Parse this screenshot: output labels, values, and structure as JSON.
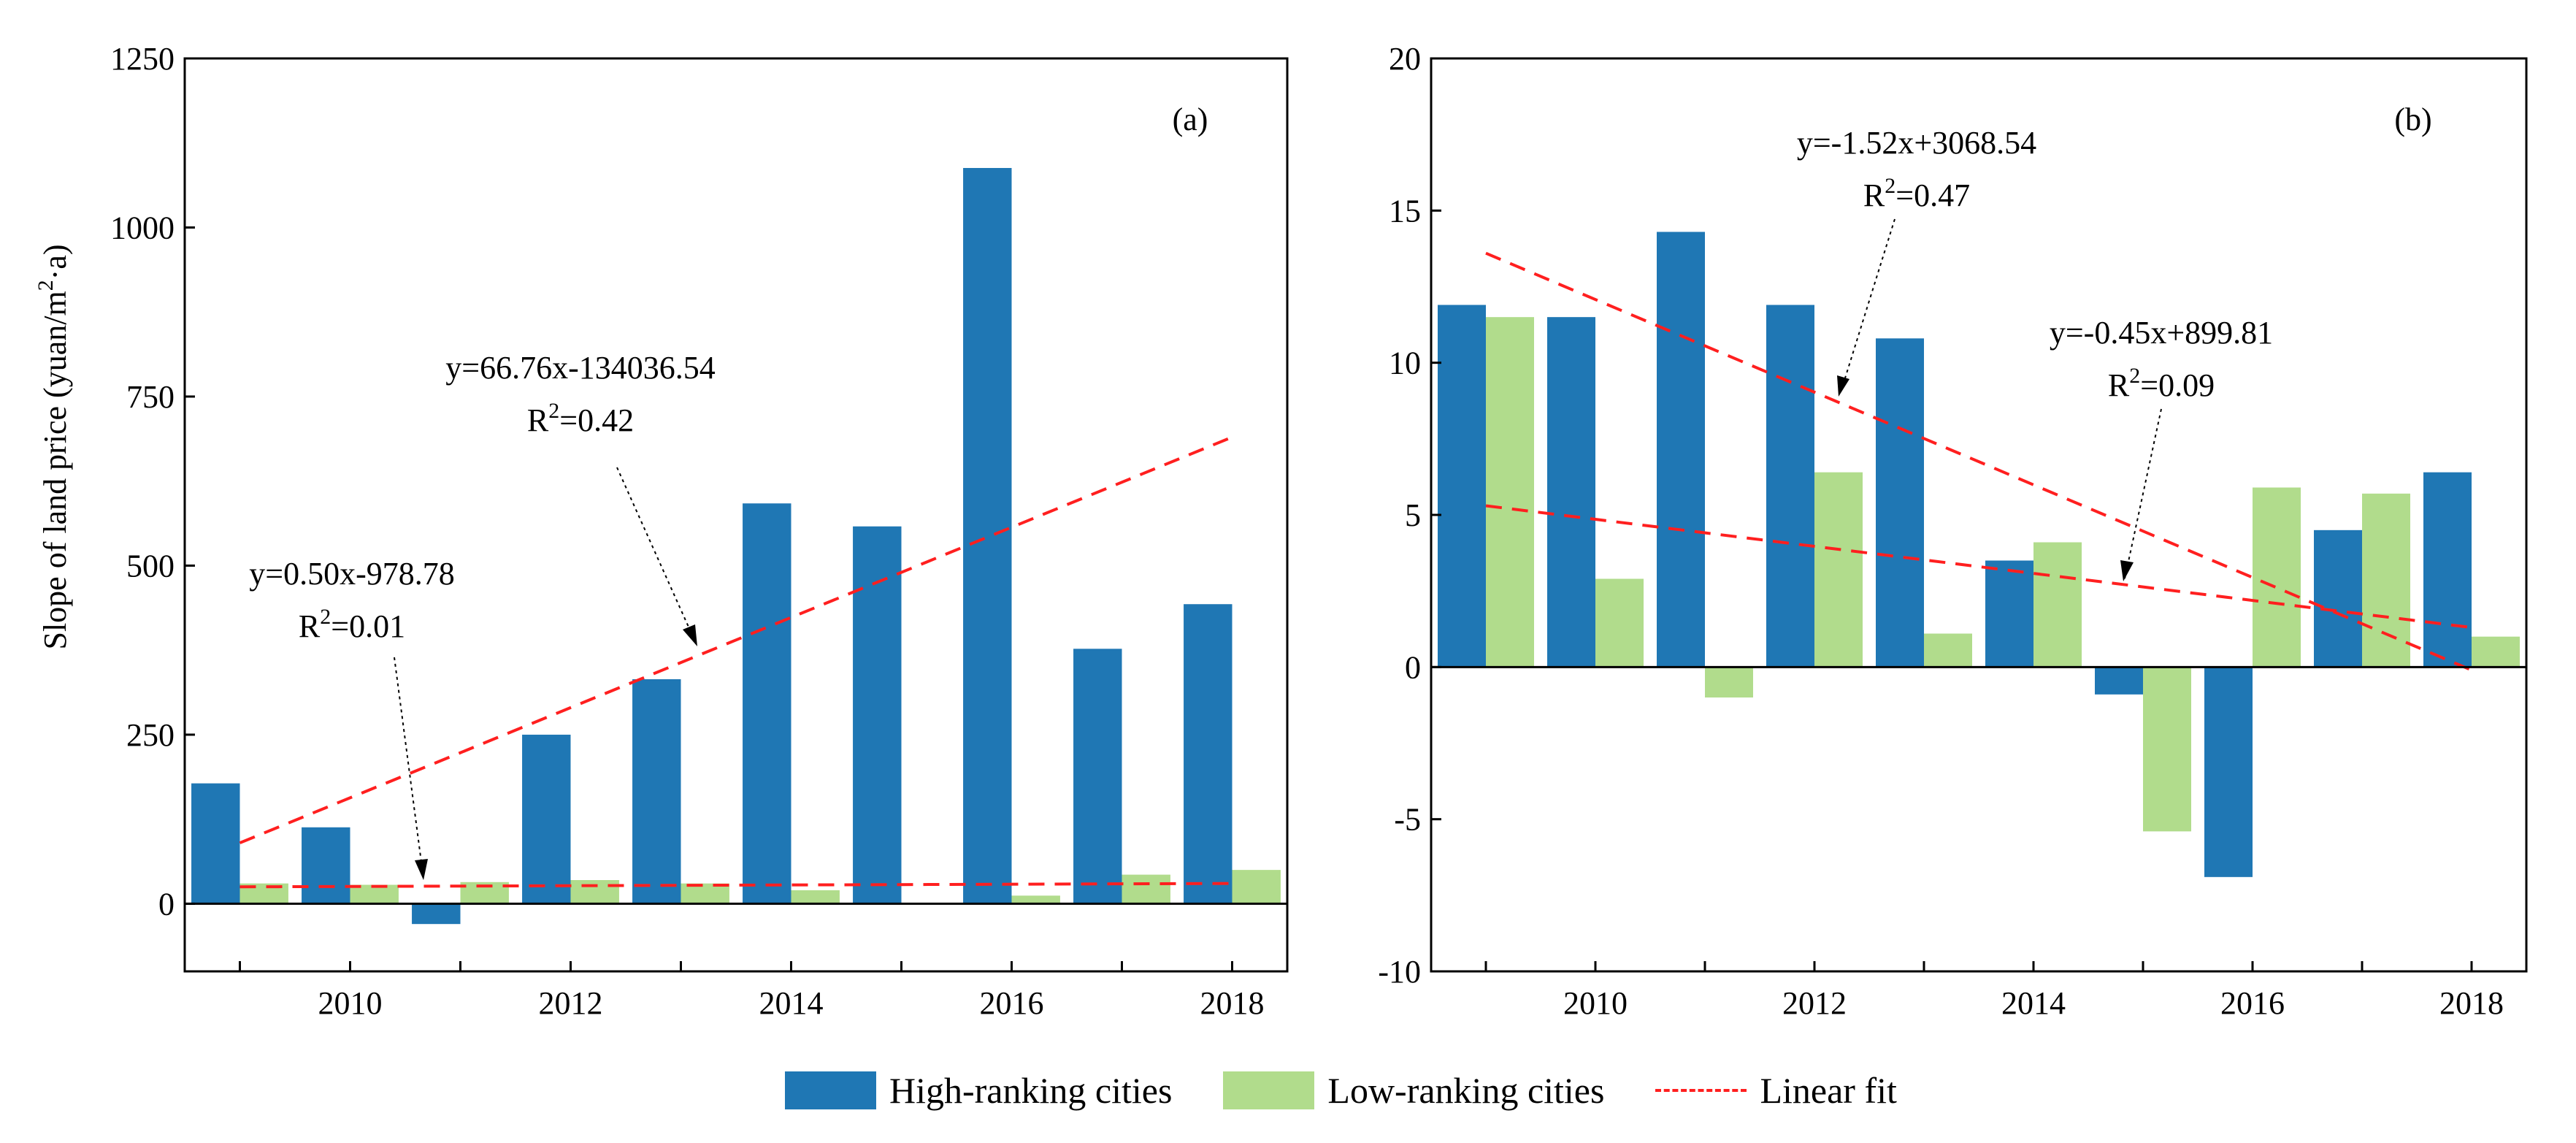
{
  "chart_data": [
    {
      "type": "bar",
      "panel_label": "(a)",
      "ylabel": "Slope of land price (yuan/m²·a)",
      "ylabel_parts": [
        "Slope of land price (yuan/m",
        "2",
        "·a)"
      ],
      "xlabel": "",
      "years": [
        2009,
        2010,
        2011,
        2012,
        2013,
        2014,
        2015,
        2016,
        2017,
        2018
      ],
      "x_tick_labels": [
        "2010",
        "2012",
        "2014",
        "2016",
        "2018"
      ],
      "y_tick_labels": [
        "0",
        "250",
        "500",
        "750",
        "1000",
        "1250"
      ],
      "ylim": [
        -100,
        1250
      ],
      "y_ticks": [
        0,
        250,
        500,
        750,
        1000,
        1250
      ],
      "series": [
        {
          "name": "High-ranking cities",
          "color": "#1f77b4",
          "values": [
            178,
            113,
            -30,
            250,
            332,
            592,
            558,
            1088,
            377,
            443
          ]
        },
        {
          "name": "Low-ranking cities",
          "color": "#b1dc8c",
          "values": [
            30,
            28,
            32,
            35,
            30,
            20,
            null,
            12,
            43,
            50
          ]
        }
      ],
      "fits": [
        {
          "name": "Linear fit",
          "series": "High-ranking cities",
          "slope": 66.76,
          "intercept": -134036.54,
          "equation": "y=66.76x-134036.54",
          "r2_base": "R",
          "r2_exp": "2",
          "r2_value": "=0.42",
          "start_value": 90,
          "end_value": 690
        },
        {
          "name": "Linear fit",
          "series": "Low-ranking cities",
          "slope": 0.5,
          "intercept": -978.78,
          "equation": "y=0.50x-978.78",
          "r2_base": "R",
          "r2_exp": "2",
          "r2_value": "=0.01",
          "start_value": 25,
          "end_value": 30
        }
      ]
    },
    {
      "type": "bar",
      "panel_label": "(b)",
      "ylabel": "",
      "xlabel": "",
      "years": [
        2009,
        2010,
        2011,
        2012,
        2013,
        2014,
        2015,
        2016,
        2017,
        2018
      ],
      "x_tick_labels": [
        "2010",
        "2012",
        "2014",
        "2016",
        "2018"
      ],
      "y_tick_labels": [
        "-10",
        "-5",
        "0",
        "5",
        "10",
        "15",
        "20"
      ],
      "ylim": [
        -10,
        20
      ],
      "y_ticks": [
        -10,
        -5,
        0,
        5,
        10,
        15,
        20
      ],
      "series": [
        {
          "name": "High-ranking cities",
          "color": "#1f77b4",
          "values": [
            11.9,
            11.5,
            14.3,
            11.9,
            10.8,
            3.5,
            -0.9,
            -6.9,
            4.5,
            6.4
          ]
        },
        {
          "name": "Low-ranking cities",
          "color": "#b1dc8c",
          "values": [
            11.5,
            2.9,
            -1.0,
            6.4,
            1.1,
            4.1,
            -5.4,
            5.9,
            5.7,
            1.0
          ]
        }
      ],
      "fits": [
        {
          "name": "Linear fit",
          "series": "High-ranking cities",
          "slope": -1.52,
          "intercept": 3068.54,
          "equation": "y=-1.52x+3068.54",
          "r2_base": "R",
          "r2_exp": "2",
          "r2_value": "=0.47",
          "start_value": 13.6,
          "end_value": -0.1
        },
        {
          "name": "Linear fit",
          "series": "Low-ranking cities",
          "slope": -0.45,
          "intercept": 899.81,
          "equation": "y=-0.45x+899.81",
          "r2_base": "R",
          "r2_exp": "2",
          "r2_value": "=0.09",
          "start_value": 5.3,
          "end_value": 1.3
        }
      ]
    }
  ],
  "legend": {
    "high_label": "High-ranking cities",
    "low_label": "Low-ranking cities",
    "fit_label": "Linear fit",
    "high_color": "#1f77b4",
    "low_color": "#b1dc8c",
    "fit_color": "#ff1f1f",
    "position": "bottom-center"
  }
}
